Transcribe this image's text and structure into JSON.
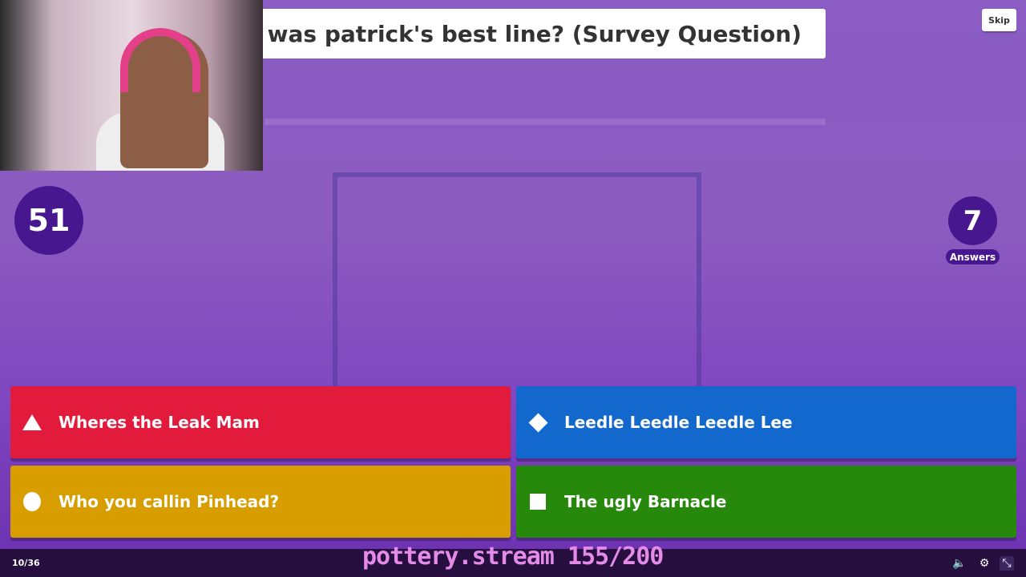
{
  "question": {
    "text": "hat was patrick's best line? (Survey Question)"
  },
  "skip_label": "Skip",
  "timer": "51",
  "answers_count": "7",
  "answers_label": "Answers",
  "answers": [
    {
      "text": "Wheres the Leak Mam",
      "color": "#e21b3c",
      "shape": "triangle"
    },
    {
      "text": "Leedle Leedle Leedle Lee",
      "color": "#1368ce",
      "shape": "diamond"
    },
    {
      "text": "Who you callin Pinhead?",
      "color": "#d89e00",
      "shape": "circle"
    },
    {
      "text": "The ugly Barnacle",
      "color": "#26890c",
      "shape": "square"
    }
  ],
  "footer": {
    "progress": "10/36",
    "stream_overlay": "pottery.stream 155/200",
    "icons": [
      "volume-icon",
      "gear-icon",
      "exit-fullscreen-icon"
    ]
  }
}
